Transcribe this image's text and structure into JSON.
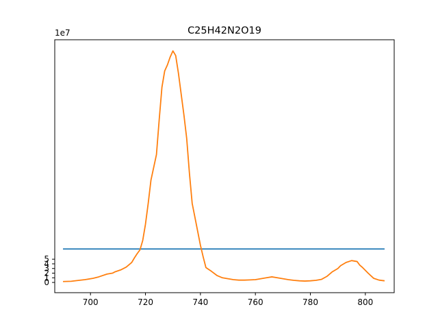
{
  "chart_data": {
    "type": "line",
    "title": "C25H42N2O19",
    "xlabel": "",
    "ylabel": "",
    "y_scale_label": "1e7",
    "xlim": [
      687,
      810.5
    ],
    "ylim": [
      -2.2,
      52.2
    ],
    "y_multiplier": 10000000,
    "x_ticks": [
      700,
      720,
      740,
      760,
      780,
      800
    ],
    "y_ticks": [
      0,
      1,
      2,
      3,
      4,
      5
    ],
    "grid": false,
    "series": [
      {
        "color": "#1f77b4",
        "x": [
          690,
          807
        ],
        "y": [
          7.2,
          7.2
        ]
      },
      {
        "color": "#ff7f0e",
        "x": [
          690,
          693,
          695,
          698,
          701,
          703,
          706,
          708,
          709,
          711,
          713,
          715,
          716,
          717,
          718,
          719,
          720,
          721,
          722,
          724,
          725,
          726,
          727,
          728,
          729,
          730,
          731,
          732,
          733,
          734,
          735,
          736,
          737,
          738,
          739,
          740,
          741,
          742,
          744,
          746,
          748,
          750,
          752,
          754,
          756,
          758,
          760,
          762,
          764,
          766,
          768,
          770,
          772,
          774,
          776,
          778,
          780,
          782,
          784,
          786,
          788,
          790,
          791,
          793,
          795,
          797,
          798,
          799,
          801,
          803,
          805,
          807
        ],
        "y": [
          0.2,
          0.25,
          0.4,
          0.6,
          0.9,
          1.2,
          1.8,
          2.0,
          2.3,
          2.7,
          3.3,
          4.3,
          5.3,
          6.2,
          7.0,
          9.0,
          12.5,
          17.0,
          22.0,
          27.5,
          35.0,
          42.0,
          45.5,
          46.8,
          48.5,
          49.8,
          48.8,
          45.0,
          40.5,
          36.0,
          31.0,
          23.5,
          17.0,
          14.0,
          11.0,
          8.0,
          5.5,
          3.2,
          2.4,
          1.5,
          1.0,
          0.8,
          0.6,
          0.5,
          0.5,
          0.55,
          0.6,
          0.8,
          1.0,
          1.2,
          1.0,
          0.8,
          0.6,
          0.45,
          0.35,
          0.3,
          0.35,
          0.45,
          0.65,
          1.3,
          2.3,
          3.0,
          3.6,
          4.3,
          4.7,
          4.5,
          3.7,
          3.2,
          2.0,
          0.9,
          0.5,
          0.35
        ]
      }
    ]
  }
}
